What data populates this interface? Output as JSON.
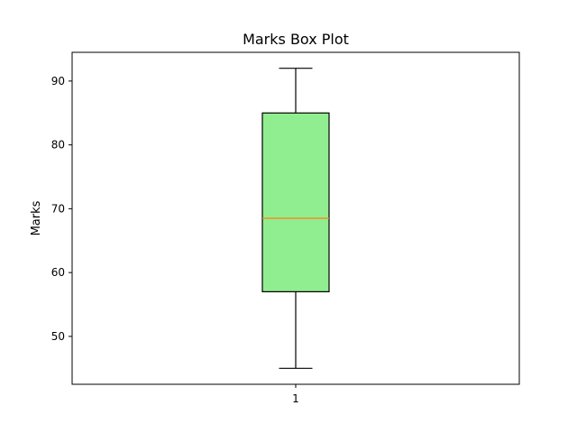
{
  "chart_data": {
    "type": "box",
    "title": "Marks Box Plot",
    "xlabel": "",
    "ylabel": "Marks",
    "categories": [
      "1"
    ],
    "series": [
      {
        "whisker_low": 45,
        "q1": 57,
        "median": 68.5,
        "q3": 85,
        "whisker_high": 92
      }
    ],
    "ylim": [
      42.5,
      94.5
    ],
    "yticks": [
      50,
      60,
      70,
      80,
      90
    ],
    "grid": false,
    "colors": {
      "box_fill": "#90EE90",
      "median_line": "#FF7F0E",
      "edge": "#000000"
    }
  }
}
